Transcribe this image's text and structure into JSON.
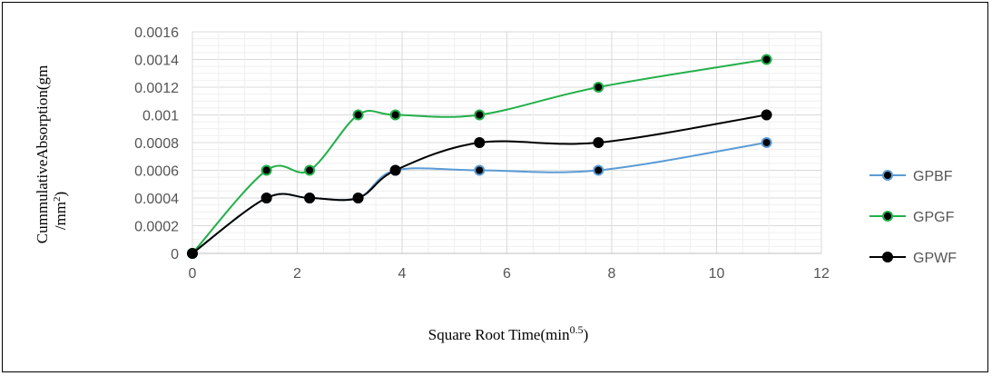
{
  "chart_data": {
    "type": "line",
    "xlabel_main": "Square Root Time(min",
    "xlabel_sup": "0.5",
    "xlabel_end": ")",
    "ylabel_line1": "CummulativeAbsorption(gm",
    "ylabel_line2_pre": "/mm",
    "ylabel_line2_sup": "2",
    "ylabel_line2_post": ")",
    "xlim": [
      0,
      12
    ],
    "ylim": [
      0,
      0.0016
    ],
    "x_ticks": [
      "0",
      "2",
      "4",
      "6",
      "8",
      "10",
      "12"
    ],
    "y_ticks": [
      "0",
      "0.0002",
      "0.0004",
      "0.0006",
      "0.0008",
      "0.001",
      "0.0012",
      "0.0014",
      "0.0016"
    ],
    "grid": true,
    "legend_position": "right",
    "x": [
      0,
      1.414,
      2.236,
      3.162,
      3.873,
      5.477,
      7.746,
      10.954
    ],
    "series": [
      {
        "name": "GPBF",
        "color": "#5b9bd5",
        "values": [
          0,
          0.0004,
          0.0004,
          0.0004,
          0.0006,
          0.0006,
          0.0006,
          0.0008
        ]
      },
      {
        "name": "GPGF",
        "color": "#22b04a",
        "values": [
          0,
          0.0006,
          0.0006,
          0.001,
          0.001,
          0.001,
          0.0012,
          0.0014
        ]
      },
      {
        "name": "GPWF",
        "color": "#000000",
        "values": [
          0,
          0.0004,
          0.0004,
          0.0004,
          0.0006,
          0.0008,
          0.0008,
          0.001
        ]
      }
    ]
  }
}
